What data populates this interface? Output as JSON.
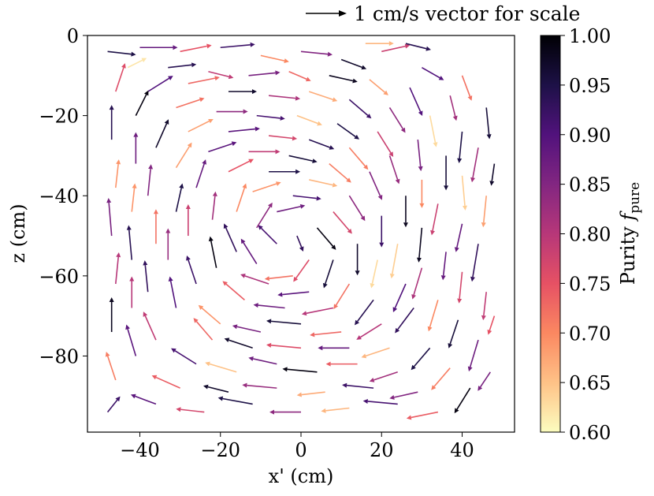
{
  "chart_data": {
    "type": "quiver",
    "title": "",
    "xlabel": "x' (cm)",
    "ylabel": "z (cm)",
    "xlim": [
      -53,
      53
    ],
    "ylim": [
      -99,
      0
    ],
    "xticks": [
      -40,
      -20,
      0,
      20,
      40
    ],
    "xtick_labels": [
      "−40",
      "−20",
      "0",
      "20",
      "40"
    ],
    "yticks": [
      0,
      -20,
      -40,
      -60,
      -80
    ],
    "ytick_labels": [
      "0",
      "−20",
      "−40",
      "−60",
      "−80"
    ],
    "grid": false,
    "legend_position": "top-right",
    "scale_key": {
      "label": "1 cm/s vector for scale",
      "length_cm_per_s": 1
    },
    "colorbar": {
      "label_prefix": "Purity ",
      "label_symbol": "f",
      "label_subscript": "pure",
      "colormap": "magma",
      "vmin": 0.6,
      "vmax": 1.0,
      "ticks": [
        0.6,
        0.65,
        0.7,
        0.75,
        0.8,
        0.85,
        0.9,
        0.95,
        1.0
      ],
      "tick_labels": [
        "0.60",
        "0.65",
        "0.70",
        "0.75",
        "0.80",
        "0.85",
        "0.90",
        "0.95",
        "1.00"
      ],
      "colors": [
        "#fcfdbf",
        "#fec287",
        "#fb8861",
        "#e65164",
        "#b73779",
        "#822681",
        "#51127c",
        "#1d1147",
        "#000004"
      ]
    },
    "vectors": [
      {
        "x": -48,
        "z": -4,
        "u": 0.9,
        "v": -0.1,
        "c": 0.95
      },
      {
        "x": -40,
        "z": -3,
        "u": 1.2,
        "v": 0.0,
        "c": 0.88
      },
      {
        "x": -30,
        "z": -4,
        "u": 1.0,
        "v": 0.2,
        "c": 0.75
      },
      {
        "x": -20,
        "z": -3,
        "u": 1.1,
        "v": 0.1,
        "c": 0.92
      },
      {
        "x": -10,
        "z": -5,
        "u": 0.9,
        "v": -0.2,
        "c": 0.7
      },
      {
        "x": 0,
        "z": -4,
        "u": 1.0,
        "v": -0.1,
        "c": 0.85
      },
      {
        "x": 10,
        "z": -6,
        "u": 0.8,
        "v": -0.3,
        "c": 0.97
      },
      {
        "x": 20,
        "z": -4,
        "u": 0.9,
        "v": 0.2,
        "c": 0.78
      },
      {
        "x": 30,
        "z": -8,
        "u": 0.7,
        "v": -0.4,
        "c": 0.9
      },
      {
        "x": 40,
        "z": -10,
        "u": 0.3,
        "v": -0.8,
        "c": 0.72
      },
      {
        "x": 46,
        "z": -18,
        "u": 0.1,
        "v": -1.0,
        "c": 0.96
      },
      {
        "x": 44,
        "z": -28,
        "u": -0.2,
        "v": -1.1,
        "c": 0.82
      },
      {
        "x": 46,
        "z": -40,
        "u": -0.1,
        "v": -1.0,
        "c": 0.68
      },
      {
        "x": 44,
        "z": -52,
        "u": -0.2,
        "v": -1.2,
        "c": 0.93
      },
      {
        "x": 46,
        "z": -64,
        "u": -0.1,
        "v": -0.9,
        "c": 0.79
      },
      {
        "x": 44,
        "z": -76,
        "u": -0.3,
        "v": -1.0,
        "c": 0.87
      },
      {
        "x": 42,
        "z": -88,
        "u": -0.5,
        "v": -0.8,
        "c": 0.99
      },
      {
        "x": 34,
        "z": -94,
        "u": -1.0,
        "v": -0.2,
        "c": 0.74
      },
      {
        "x": 24,
        "z": -92,
        "u": -1.1,
        "v": 0.1,
        "c": 0.91
      },
      {
        "x": 12,
        "z": -93,
        "u": -0.9,
        "v": -0.1,
        "c": 0.66
      },
      {
        "x": 0,
        "z": -94,
        "u": -1.0,
        "v": 0.0,
        "c": 0.84
      },
      {
        "x": -12,
        "z": -92,
        "u": -1.1,
        "v": 0.2,
        "c": 0.95
      },
      {
        "x": -24,
        "z": -94,
        "u": -0.9,
        "v": 0.1,
        "c": 0.77
      },
      {
        "x": -36,
        "z": -92,
        "u": -0.8,
        "v": 0.3,
        "c": 0.89
      },
      {
        "x": -46,
        "z": -86,
        "u": -0.3,
        "v": 0.9,
        "c": 0.71
      },
      {
        "x": -47,
        "z": -74,
        "u": 0.0,
        "v": 1.1,
        "c": 0.98
      },
      {
        "x": -46,
        "z": -62,
        "u": 0.1,
        "v": 1.0,
        "c": 0.8
      },
      {
        "x": -47,
        "z": -50,
        "u": -0.1,
        "v": 1.2,
        "c": 0.86
      },
      {
        "x": -46,
        "z": -38,
        "u": 0.1,
        "v": 0.9,
        "c": 0.69
      },
      {
        "x": -47,
        "z": -26,
        "u": 0.0,
        "v": 1.1,
        "c": 0.94
      },
      {
        "x": -46,
        "z": -14,
        "u": 0.3,
        "v": 0.9,
        "c": 0.76
      },
      {
        "x": -38,
        "z": -14,
        "u": 0.8,
        "v": 0.5,
        "c": 0.9
      },
      {
        "x": -28,
        "z": -12,
        "u": 1.0,
        "v": 0.2,
        "c": 0.73
      },
      {
        "x": -18,
        "z": -14,
        "u": 0.9,
        "v": 0.0,
        "c": 0.97
      },
      {
        "x": -8,
        "z": -15,
        "u": 1.0,
        "v": -0.1,
        "c": 0.81
      },
      {
        "x": 2,
        "z": -14,
        "u": 0.9,
        "v": -0.3,
        "c": 0.67
      },
      {
        "x": 12,
        "z": -16,
        "u": 0.7,
        "v": -0.6,
        "c": 0.92
      },
      {
        "x": 22,
        "z": -18,
        "u": 0.5,
        "v": -0.8,
        "c": 0.84
      },
      {
        "x": 32,
        "z": -20,
        "u": 0.2,
        "v": -1.0,
        "c": 0.63
      },
      {
        "x": 36,
        "z": -30,
        "u": 0.0,
        "v": -1.1,
        "c": 0.96
      },
      {
        "x": 34,
        "z": -42,
        "u": -0.2,
        "v": -1.0,
        "c": 0.78
      },
      {
        "x": 36,
        "z": -54,
        "u": -0.1,
        "v": -0.9,
        "c": 0.88
      },
      {
        "x": 34,
        "z": -66,
        "u": -0.3,
        "v": -1.0,
        "c": 0.7
      },
      {
        "x": 32,
        "z": -78,
        "u": -0.6,
        "v": -0.7,
        "c": 0.95
      },
      {
        "x": 24,
        "z": -84,
        "u": -0.9,
        "v": -0.3,
        "c": 0.82
      },
      {
        "x": 14,
        "z": -82,
        "u": -1.0,
        "v": 0.0,
        "c": 0.74
      },
      {
        "x": 4,
        "z": -84,
        "u": -1.1,
        "v": 0.1,
        "c": 0.99
      },
      {
        "x": -6,
        "z": -82,
        "u": -0.9,
        "v": 0.2,
        "c": 0.87
      },
      {
        "x": -16,
        "z": -84,
        "u": -1.0,
        "v": 0.3,
        "c": 0.65
      },
      {
        "x": -26,
        "z": -82,
        "u": -0.8,
        "v": 0.5,
        "c": 0.91
      },
      {
        "x": -36,
        "z": -76,
        "u": -0.4,
        "v": 0.9,
        "c": 0.79
      },
      {
        "x": -38,
        "z": -64,
        "u": -0.1,
        "v": 1.0,
        "c": 0.93
      },
      {
        "x": -36,
        "z": -52,
        "u": 0.0,
        "v": 1.1,
        "c": 0.72
      },
      {
        "x": -38,
        "z": -40,
        "u": 0.1,
        "v": 1.0,
        "c": 0.85
      },
      {
        "x": -36,
        "z": -28,
        "u": 0.4,
        "v": 0.9,
        "c": 0.97
      },
      {
        "x": -28,
        "z": -24,
        "u": 0.8,
        "v": 0.4,
        "c": 0.68
      },
      {
        "x": -18,
        "z": -24,
        "u": 1.0,
        "v": 0.1,
        "c": 0.89
      },
      {
        "x": -8,
        "z": -25,
        "u": 0.9,
        "v": -0.1,
        "c": 0.77
      },
      {
        "x": 2,
        "z": -26,
        "u": 0.8,
        "v": -0.3,
        "c": 0.94
      },
      {
        "x": 12,
        "z": -28,
        "u": 0.6,
        "v": -0.7,
        "c": 0.71
      },
      {
        "x": 22,
        "z": -30,
        "u": 0.3,
        "v": -0.9,
        "c": 0.83
      },
      {
        "x": 26,
        "z": -40,
        "u": 0.0,
        "v": -1.0,
        "c": 0.98
      },
      {
        "x": 24,
        "z": -52,
        "u": -0.2,
        "v": -1.1,
        "c": 0.64
      },
      {
        "x": 26,
        "z": -62,
        "u": -0.4,
        "v": -0.9,
        "c": 0.9
      },
      {
        "x": 20,
        "z": -72,
        "u": -0.8,
        "v": -0.5,
        "c": 0.8
      },
      {
        "x": 10,
        "z": -74,
        "u": -1.0,
        "v": -0.1,
        "c": 0.73
      },
      {
        "x": 0,
        "z": -72,
        "u": -1.1,
        "v": 0.1,
        "c": 0.96
      },
      {
        "x": -10,
        "z": -74,
        "u": -0.9,
        "v": 0.2,
        "c": 0.86
      },
      {
        "x": -20,
        "z": -72,
        "u": -0.7,
        "v": 0.6,
        "c": 0.69
      },
      {
        "x": -26,
        "z": -62,
        "u": -0.3,
        "v": 0.9,
        "c": 0.92
      },
      {
        "x": -28,
        "z": -50,
        "u": 0.0,
        "v": 1.0,
        "c": 0.78
      },
      {
        "x": -26,
        "z": -38,
        "u": 0.3,
        "v": 0.9,
        "c": 0.88
      },
      {
        "x": -18,
        "z": -34,
        "u": 0.8,
        "v": 0.4,
        "c": 0.75
      },
      {
        "x": -8,
        "z": -34,
        "u": 1.0,
        "v": 0.0,
        "c": 0.95
      },
      {
        "x": 2,
        "z": -36,
        "u": 0.9,
        "v": -0.2,
        "c": 0.66
      },
      {
        "x": 12,
        "z": -40,
        "u": 0.5,
        "v": -0.8,
        "c": 0.84
      },
      {
        "x": 14,
        "z": -52,
        "u": 0.0,
        "v": -1.0,
        "c": 0.97
      },
      {
        "x": 12,
        "z": -62,
        "u": -0.5,
        "v": -0.8,
        "c": 0.72
      },
      {
        "x": 2,
        "z": -64,
        "u": -1.0,
        "v": -0.1,
        "c": 0.89
      },
      {
        "x": -8,
        "z": -62,
        "u": -0.9,
        "v": 0.3,
        "c": 0.81
      },
      {
        "x": -16,
        "z": -54,
        "u": -0.4,
        "v": 0.9,
        "c": 0.93
      },
      {
        "x": -16,
        "z": -44,
        "u": 0.3,
        "v": 0.9,
        "c": 0.7
      },
      {
        "x": -6,
        "z": -44,
        "u": 0.9,
        "v": 0.2,
        "c": 0.87
      },
      {
        "x": 4,
        "z": -48,
        "u": 0.6,
        "v": -0.7,
        "c": 0.99
      },
      {
        "x": 2,
        "z": -56,
        "u": -0.5,
        "v": -0.7,
        "c": 0.76
      },
      {
        "x": -6,
        "z": -52,
        "u": -0.6,
        "v": 0.6,
        "c": 0.91
      },
      {
        "x": -43,
        "z": -8,
        "u": 0.6,
        "v": 0.3,
        "c": 0.62
      },
      {
        "x": -33,
        "z": -8,
        "u": 0.9,
        "v": 0.1,
        "c": 0.94
      },
      {
        "x": -23,
        "z": -9,
        "u": 0.8,
        "v": -0.2,
        "c": 0.79
      },
      {
        "x": -13,
        "z": -10,
        "u": 1.0,
        "v": 0.1,
        "c": 0.86
      },
      {
        "x": -3,
        "z": -9,
        "u": 0.7,
        "v": -0.3,
        "c": 0.73
      },
      {
        "x": 7,
        "z": -10,
        "u": 0.9,
        "v": -0.2,
        "c": 0.98
      },
      {
        "x": 17,
        "z": -11,
        "u": 0.6,
        "v": -0.5,
        "c": 0.68
      },
      {
        "x": 27,
        "z": -13,
        "u": 0.4,
        "v": -0.9,
        "c": 0.9
      },
      {
        "x": 37,
        "z": -15,
        "u": 0.2,
        "v": -0.8,
        "c": 0.82
      },
      {
        "x": 40,
        "z": -24,
        "u": -0.1,
        "v": -1.0,
        "c": 0.95
      },
      {
        "x": 40,
        "z": -35,
        "u": 0.1,
        "v": -1.1,
        "c": 0.64
      },
      {
        "x": 40,
        "z": -47,
        "u": -0.2,
        "v": -0.9,
        "c": 0.88
      },
      {
        "x": 40,
        "z": -59,
        "u": -0.1,
        "v": -1.0,
        "c": 0.77
      },
      {
        "x": 39,
        "z": -71,
        "u": -0.3,
        "v": -0.9,
        "c": 0.96
      },
      {
        "x": 37,
        "z": -83,
        "u": -0.6,
        "v": -0.7,
        "c": 0.71
      },
      {
        "x": 29,
        "z": -89,
        "u": -0.9,
        "v": -0.2,
        "c": 0.85
      },
      {
        "x": 18,
        "z": -88,
        "u": -1.0,
        "v": 0.1,
        "c": 0.92
      },
      {
        "x": 6,
        "z": -89,
        "u": -0.9,
        "v": -0.1,
        "c": 0.67
      },
      {
        "x": -6,
        "z": -88,
        "u": -1.1,
        "v": 0.1,
        "c": 0.83
      },
      {
        "x": -18,
        "z": -89,
        "u": -0.8,
        "v": 0.2,
        "c": 0.97
      },
      {
        "x": -30,
        "z": -88,
        "u": -0.9,
        "v": 0.4,
        "c": 0.74
      },
      {
        "x": -41,
        "z": -80,
        "u": -0.3,
        "v": 1.0,
        "c": 0.89
      },
      {
        "x": -42,
        "z": -68,
        "u": 0.0,
        "v": 1.0,
        "c": 0.8
      },
      {
        "x": -42,
        "z": -56,
        "u": -0.1,
        "v": 1.1,
        "c": 0.94
      },
      {
        "x": -42,
        "z": -44,
        "u": 0.1,
        "v": 0.9,
        "c": 0.69
      },
      {
        "x": -41,
        "z": -32,
        "u": 0.0,
        "v": 1.0,
        "c": 0.87
      },
      {
        "x": -41,
        "z": -20,
        "u": 0.4,
        "v": 0.8,
        "c": 0.99
      },
      {
        "x": -31,
        "z": -18,
        "u": 0.9,
        "v": 0.3,
        "c": 0.72
      },
      {
        "x": -21,
        "z": -19,
        "u": 1.0,
        "v": 0.0,
        "c": 0.84
      },
      {
        "x": -11,
        "z": -20,
        "u": 0.9,
        "v": -0.1,
        "c": 0.91
      },
      {
        "x": -1,
        "z": -20,
        "u": 0.8,
        "v": -0.3,
        "c": 0.65
      },
      {
        "x": 9,
        "z": -22,
        "u": 0.7,
        "v": -0.5,
        "c": 0.95
      },
      {
        "x": 19,
        "z": -24,
        "u": 0.5,
        "v": -0.8,
        "c": 0.78
      },
      {
        "x": 29,
        "z": -26,
        "u": 0.1,
        "v": -1.0,
        "c": 0.86
      },
      {
        "x": 30,
        "z": -36,
        "u": 0.0,
        "v": -0.9,
        "c": 0.7
      },
      {
        "x": 30,
        "z": -48,
        "u": -0.1,
        "v": -1.1,
        "c": 0.98
      },
      {
        "x": 30,
        "z": -58,
        "u": -0.3,
        "v": -1.0,
        "c": 0.81
      },
      {
        "x": 28,
        "z": -68,
        "u": -0.6,
        "v": -0.8,
        "c": 0.93
      },
      {
        "x": 22,
        "z": -78,
        "u": -0.9,
        "v": -0.3,
        "c": 0.66
      },
      {
        "x": 12,
        "z": -78,
        "u": -1.0,
        "v": 0.0,
        "c": 0.88
      },
      {
        "x": 0,
        "z": -78,
        "u": -1.1,
        "v": 0.1,
        "c": 0.76
      },
      {
        "x": -12,
        "z": -78,
        "u": -0.9,
        "v": 0.3,
        "c": 0.97
      },
      {
        "x": -22,
        "z": -76,
        "u": -0.6,
        "v": 0.7,
        "c": 0.73
      },
      {
        "x": -31,
        "z": -68,
        "u": -0.2,
        "v": 1.0,
        "c": 0.9
      },
      {
        "x": -33,
        "z": -56,
        "u": 0.0,
        "v": 1.0,
        "c": 0.83
      },
      {
        "x": -31,
        "z": -44,
        "u": 0.2,
        "v": 0.9,
        "c": 0.95
      },
      {
        "x": -31,
        "z": -33,
        "u": 0.5,
        "v": 0.8,
        "c": 0.68
      },
      {
        "x": -23,
        "z": -29,
        "u": 0.9,
        "v": 0.3,
        "c": 0.89
      },
      {
        "x": -13,
        "z": -29,
        "u": 1.0,
        "v": 0.0,
        "c": 0.79
      },
      {
        "x": -3,
        "z": -30,
        "u": 0.9,
        "v": -0.2,
        "c": 0.96
      },
      {
        "x": 7,
        "z": -32,
        "u": 0.7,
        "v": -0.6,
        "c": 0.71
      },
      {
        "x": 17,
        "z": -34,
        "u": 0.4,
        "v": -0.9,
        "c": 0.85
      },
      {
        "x": 20,
        "z": -45,
        "u": 0.0,
        "v": -1.0,
        "c": 0.92
      },
      {
        "x": 19,
        "z": -56,
        "u": -0.2,
        "v": -0.9,
        "c": 0.63
      },
      {
        "x": 18,
        "z": -66,
        "u": -0.6,
        "v": -0.8,
        "c": 0.94
      },
      {
        "x": 8,
        "z": -68,
        "u": -1.0,
        "v": -0.2,
        "c": 0.8
      },
      {
        "x": -4,
        "z": -68,
        "u": -1.0,
        "v": 0.1,
        "c": 0.87
      },
      {
        "x": -14,
        "z": -66,
        "u": -0.7,
        "v": 0.6,
        "c": 0.74
      },
      {
        "x": -21,
        "z": -58,
        "u": -0.2,
        "v": 1.0,
        "c": 0.99
      },
      {
        "x": -22,
        "z": -46,
        "u": 0.1,
        "v": 0.9,
        "c": 0.82
      },
      {
        "x": -12,
        "z": -39,
        "u": 0.9,
        "v": 0.3,
        "c": 0.69
      },
      {
        "x": -2,
        "z": -40,
        "u": 0.9,
        "v": -0.1,
        "c": 0.91
      },
      {
        "x": 8,
        "z": -44,
        "u": 0.6,
        "v": -0.7,
        "c": 0.77
      },
      {
        "x": 8,
        "z": -56,
        "u": -0.3,
        "v": -0.9,
        "c": 0.96
      },
      {
        "x": -2,
        "z": -60,
        "u": -0.9,
        "v": -0.1,
        "c": 0.72
      },
      {
        "x": -11,
        "z": -57,
        "u": -0.5,
        "v": 0.8,
        "c": 0.88
      },
      {
        "x": -11,
        "z": -48,
        "u": 0.5,
        "v": 0.8,
        "c": 0.84
      },
      {
        "x": -1,
        "z": -50,
        "u": 0.2,
        "v": -0.5,
        "c": 0.93
      },
      {
        "x": 48,
        "z": -32,
        "u": -0.1,
        "v": -0.7,
        "c": 0.97
      },
      {
        "x": 48,
        "z": -70,
        "u": -0.2,
        "v": -0.6,
        "c": 0.75
      },
      {
        "x": 47,
        "z": -84,
        "u": -0.4,
        "v": -0.6,
        "c": 0.86
      },
      {
        "x": -48,
        "z": -94,
        "u": 0.4,
        "v": 0.5,
        "c": 0.92
      },
      {
        "x": 16,
        "z": -2,
        "u": 0.9,
        "v": 0.0,
        "c": 0.66
      },
      {
        "x": 26,
        "z": -2,
        "u": 0.8,
        "v": -0.2,
        "c": 0.94
      }
    ]
  }
}
